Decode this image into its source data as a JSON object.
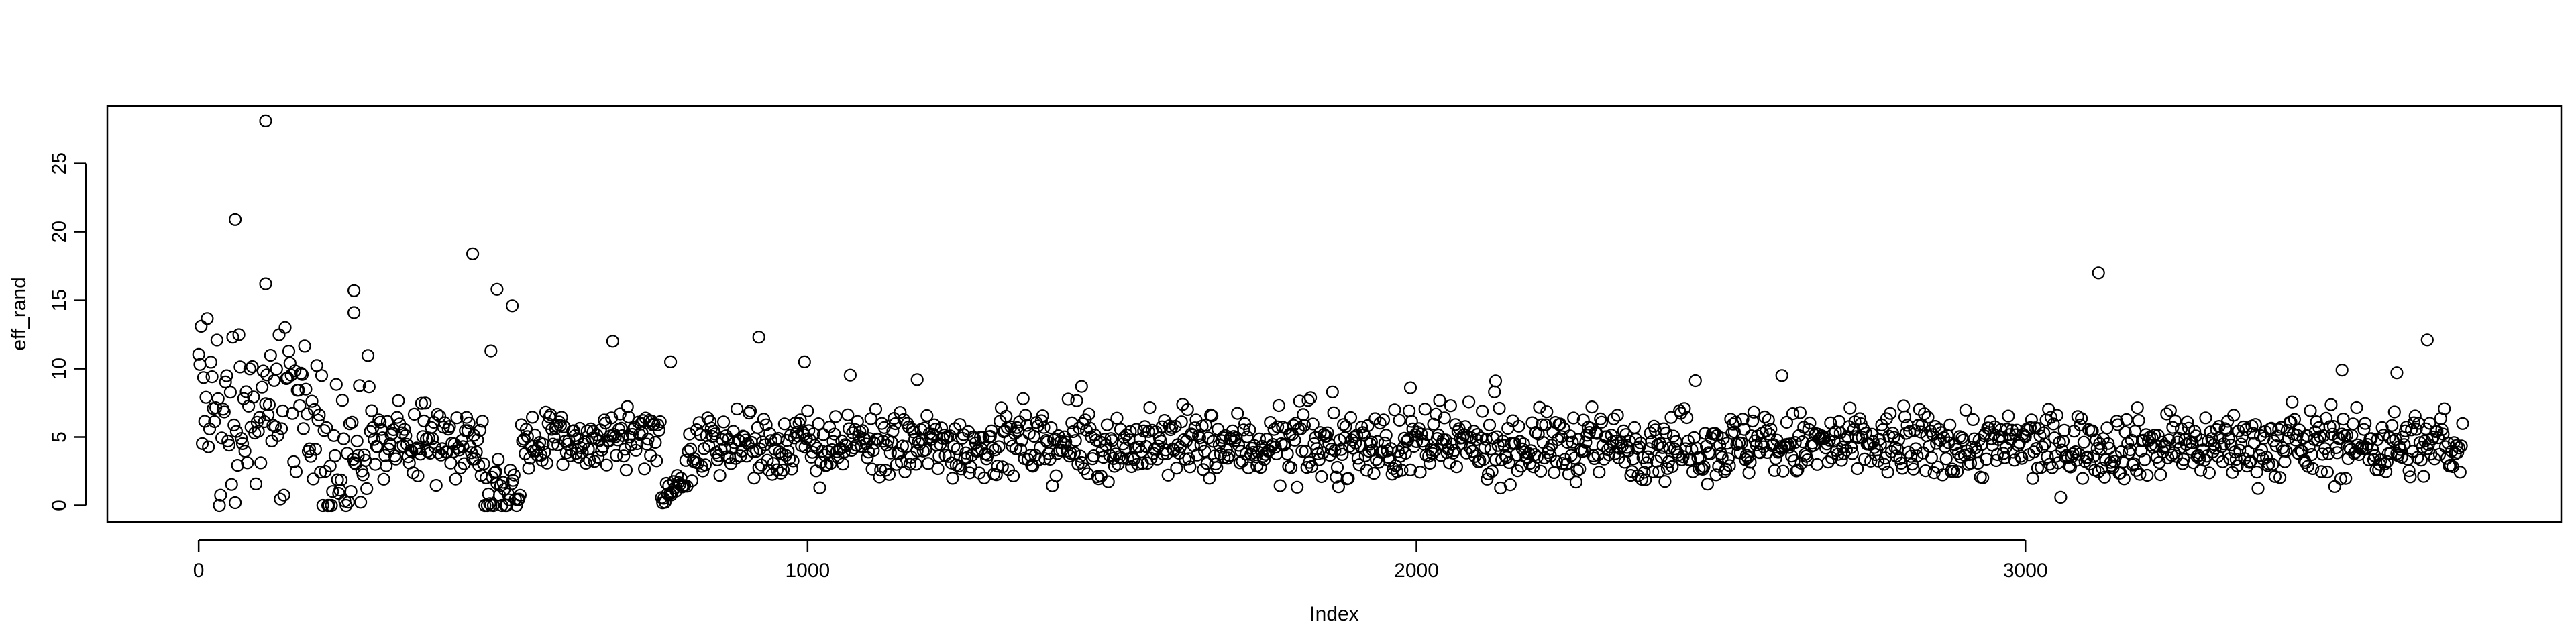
{
  "chart_data": {
    "type": "scatter",
    "title": "",
    "xlabel": "Index",
    "ylabel": "eff_rand",
    "xlim": [
      -150,
      3880
    ],
    "ylim": [
      -1.2,
      29.2
    ],
    "x_ticks": [
      0,
      1000,
      2000,
      3000
    ],
    "x_tick_labels": [
      "0",
      "1000",
      "2000",
      "3000"
    ],
    "y_ticks": [
      0,
      5,
      10,
      15,
      20,
      25
    ],
    "y_tick_labels": [
      "0",
      "5",
      "10",
      "15",
      "20",
      "25"
    ],
    "grid": false,
    "marker": "open-circle",
    "n_points": 3720,
    "notable_points": [
      {
        "x": 110,
        "y": 28.1
      },
      {
        "x": 60,
        "y": 20.9
      },
      {
        "x": 450,
        "y": 18.4
      },
      {
        "x": 3120,
        "y": 17.0
      },
      {
        "x": 110,
        "y": 16.2
      },
      {
        "x": 490,
        "y": 15.8
      },
      {
        "x": 255,
        "y": 15.7
      },
      {
        "x": 515,
        "y": 14.6
      },
      {
        "x": 255,
        "y": 14.1
      },
      {
        "x": 920,
        "y": 12.3
      },
      {
        "x": 3660,
        "y": 12.1
      },
      {
        "x": 680,
        "y": 12.0
      },
      {
        "x": 480,
        "y": 11.3
      },
      {
        "x": 775,
        "y": 10.5
      },
      {
        "x": 995,
        "y": 10.5
      },
      {
        "x": 3520,
        "y": 9.9
      },
      {
        "x": 3610,
        "y": 9.7
      },
      {
        "x": 2600,
        "y": 9.5
      },
      {
        "x": 1180,
        "y": 9.2
      },
      {
        "x": 2130,
        "y": 9.1
      },
      {
        "x": 1990,
        "y": 8.6
      },
      {
        "x": 1450,
        "y": 8.7
      }
    ],
    "segments": [
      {
        "from": 0,
        "to": 200,
        "center": 7.0,
        "spread": 3.2
      },
      {
        "from": 200,
        "to": 300,
        "center": 3.5,
        "spread": 2.5
      },
      {
        "from": 300,
        "to": 470,
        "center": 4.8,
        "spread": 1.3
      },
      {
        "from": 470,
        "to": 530,
        "center": 1.0,
        "spread": 1.0
      },
      {
        "from": 530,
        "to": 760,
        "center": 4.6,
        "spread": 1.2
      },
      {
        "from": 760,
        "to": 800,
        "center": 1.2,
        "spread": 0.7
      },
      {
        "from": 800,
        "to": 3720,
        "center": 4.4,
        "spread": 1.2
      }
    ]
  }
}
